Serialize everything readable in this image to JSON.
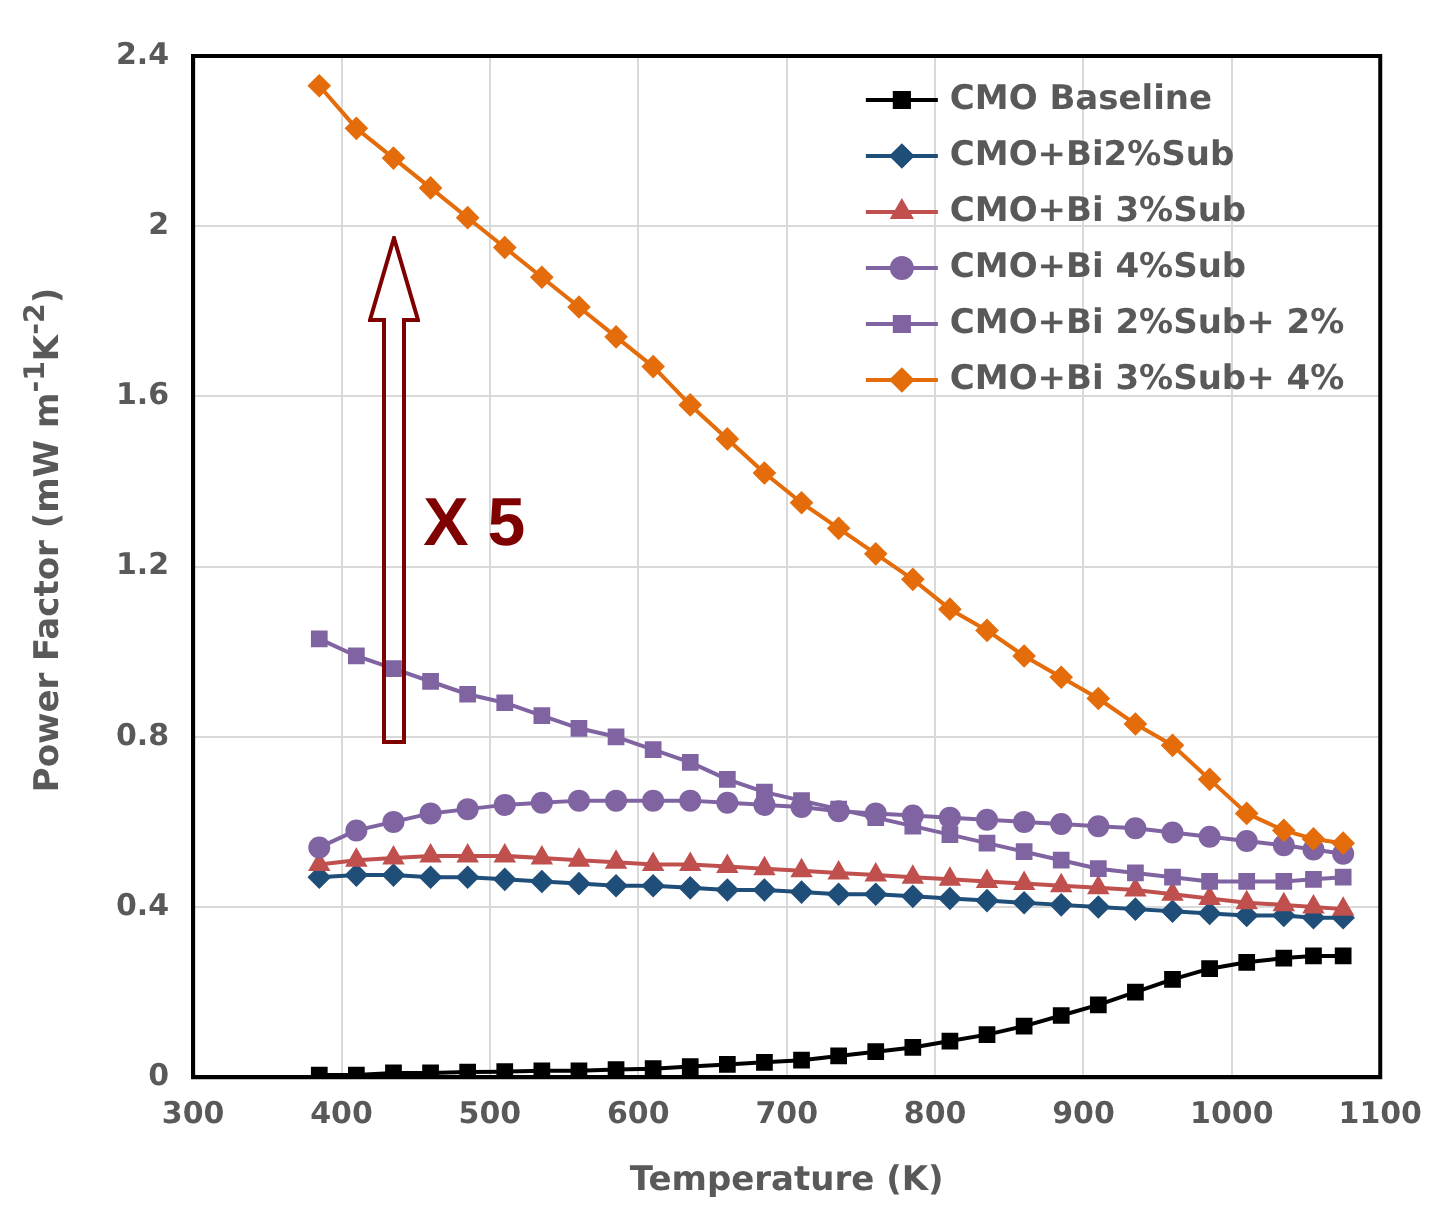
{
  "chart_data": {
    "type": "line",
    "xlabel": "Temperature (K)",
    "ylabel": "Power Factor (mW m$^{-1}$K$^{-2}$)",
    "x": [
      385,
      410,
      435,
      460,
      485,
      510,
      535,
      560,
      585,
      610,
      635,
      660,
      685,
      710,
      735,
      760,
      785,
      810,
      835,
      860,
      885,
      910,
      935,
      960,
      985,
      1010,
      1035,
      1055,
      1075
    ],
    "xlim": [
      300,
      1100
    ],
    "xticks": [
      300,
      400,
      500,
      600,
      700,
      800,
      900,
      1000,
      1100
    ],
    "ylim": [
      0,
      2.4
    ],
    "yticks": [
      0,
      0.4,
      0.8,
      1.2,
      1.6,
      2,
      2.4
    ],
    "grid": true,
    "legend": "top right",
    "line_style": "solid",
    "annotations": [
      "X 5"
    ],
    "series": [
      {
        "name": "CMO Baseline",
        "color": "#000000",
        "marker": "square",
        "values": [
          0.005,
          0.005,
          0.01,
          0.01,
          0.012,
          0.013,
          0.015,
          0.015,
          0.018,
          0.02,
          0.025,
          0.03,
          0.035,
          0.04,
          0.05,
          0.06,
          0.07,
          0.085,
          0.1,
          0.12,
          0.145,
          0.17,
          0.2,
          0.23,
          0.255,
          0.27,
          0.28,
          0.285,
          0.285
        ]
      },
      {
        "name": "CMO+Bi2%Sub",
        "color": "#1f4e79",
        "marker": "diamond",
        "values": [
          0.47,
          0.475,
          0.475,
          0.47,
          0.47,
          0.465,
          0.46,
          0.455,
          0.45,
          0.45,
          0.445,
          0.44,
          0.44,
          0.435,
          0.43,
          0.43,
          0.425,
          0.42,
          0.415,
          0.41,
          0.405,
          0.4,
          0.395,
          0.39,
          0.385,
          0.38,
          0.38,
          0.375,
          0.375
        ]
      },
      {
        "name": "CMO+Bi 3%Sub",
        "color": "#c0504d",
        "marker": "triangle",
        "values": [
          0.5,
          0.51,
          0.515,
          0.52,
          0.52,
          0.52,
          0.515,
          0.51,
          0.505,
          0.5,
          0.5,
          0.495,
          0.49,
          0.485,
          0.48,
          0.475,
          0.47,
          0.465,
          0.46,
          0.455,
          0.45,
          0.445,
          0.44,
          0.43,
          0.42,
          0.41,
          0.405,
          0.4,
          0.395
        ]
      },
      {
        "name": "CMO+Bi 4%Sub",
        "color": "#8064a2",
        "marker": "circle",
        "values": [
          0.54,
          0.58,
          0.6,
          0.62,
          0.63,
          0.64,
          0.645,
          0.65,
          0.65,
          0.65,
          0.65,
          0.645,
          0.64,
          0.635,
          0.625,
          0.62,
          0.615,
          0.61,
          0.605,
          0.6,
          0.595,
          0.59,
          0.585,
          0.575,
          0.565,
          0.555,
          0.545,
          0.535,
          0.525
        ]
      },
      {
        "name": "CMO+Bi 2%Sub+ 2%",
        "color": "#8064a2",
        "marker": "square",
        "values": [
          1.03,
          0.99,
          0.96,
          0.93,
          0.9,
          0.88,
          0.85,
          0.82,
          0.8,
          0.77,
          0.74,
          0.7,
          0.67,
          0.65,
          0.63,
          0.61,
          0.59,
          0.57,
          0.55,
          0.53,
          0.51,
          0.49,
          0.48,
          0.47,
          0.46,
          0.46,
          0.46,
          0.465,
          0.47
        ]
      },
      {
        "name": "CMO+Bi 3%Sub+ 4%",
        "color": "#e46c0a",
        "marker": "diamond",
        "values": [
          2.33,
          2.23,
          2.16,
          2.09,
          2.02,
          1.95,
          1.88,
          1.81,
          1.74,
          1.67,
          1.58,
          1.5,
          1.42,
          1.35,
          1.29,
          1.23,
          1.17,
          1.1,
          1.05,
          0.99,
          0.94,
          0.89,
          0.83,
          0.78,
          0.7,
          0.62,
          0.58,
          0.56,
          0.55
        ]
      }
    ]
  }
}
